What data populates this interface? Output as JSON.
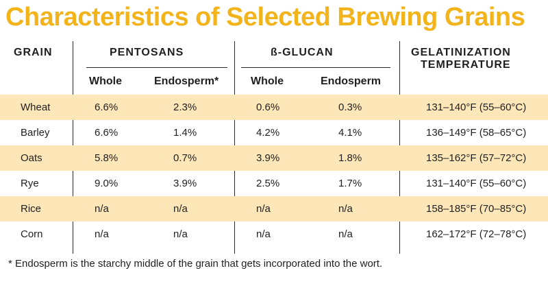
{
  "title": "Characteristics of Selected Brewing Grains",
  "headers": {
    "grain": "GRAIN",
    "pentosans": "PENTOSANS",
    "beta_glucan": "ß-GLUCAN",
    "gel_line1": "GELATINIZATION",
    "gel_line2": "TEMPERATURE",
    "whole_1": "Whole",
    "endosperm_1": "Endosperm*",
    "whole_2": "Whole",
    "endosperm_2": "Endosperm"
  },
  "rows": [
    {
      "grain": "Wheat",
      "pw": "6.6%",
      "pe": "2.3%",
      "bw": "0.6%",
      "be": "0.3%",
      "gt": "131–140°F (55–60°C)"
    },
    {
      "grain": "Barley",
      "pw": "6.6%",
      "pe": "1.4%",
      "bw": "4.2%",
      "be": "4.1%",
      "gt": "136–149°F (58–65°C)"
    },
    {
      "grain": "Oats",
      "pw": "5.8%",
      "pe": "0.7%",
      "bw": "3.9%",
      "be": "1.8%",
      "gt": "135–162°F (57–72°C)"
    },
    {
      "grain": "Rye",
      "pw": "9.0%",
      "pe": "3.9%",
      "bw": "2.5%",
      "be": "1.7%",
      "gt": "131–140°F (55–60°C)"
    },
    {
      "grain": "Rice",
      "pw": "n/a",
      "pe": "n/a",
      "bw": "n/a",
      "be": "n/a",
      "gt": "158–185°F (70–85°C)"
    },
    {
      "grain": "Corn",
      "pw": "n/a",
      "pe": "n/a",
      "bw": "n/a",
      "be": "n/a",
      "gt": "162–172°F (72–78°C)"
    }
  ],
  "footnote": "* Endosperm is the starchy middle of the grain that gets incorporated into the wort.",
  "colors": {
    "title": "#f2b31b",
    "shade": "#fde6b8"
  }
}
